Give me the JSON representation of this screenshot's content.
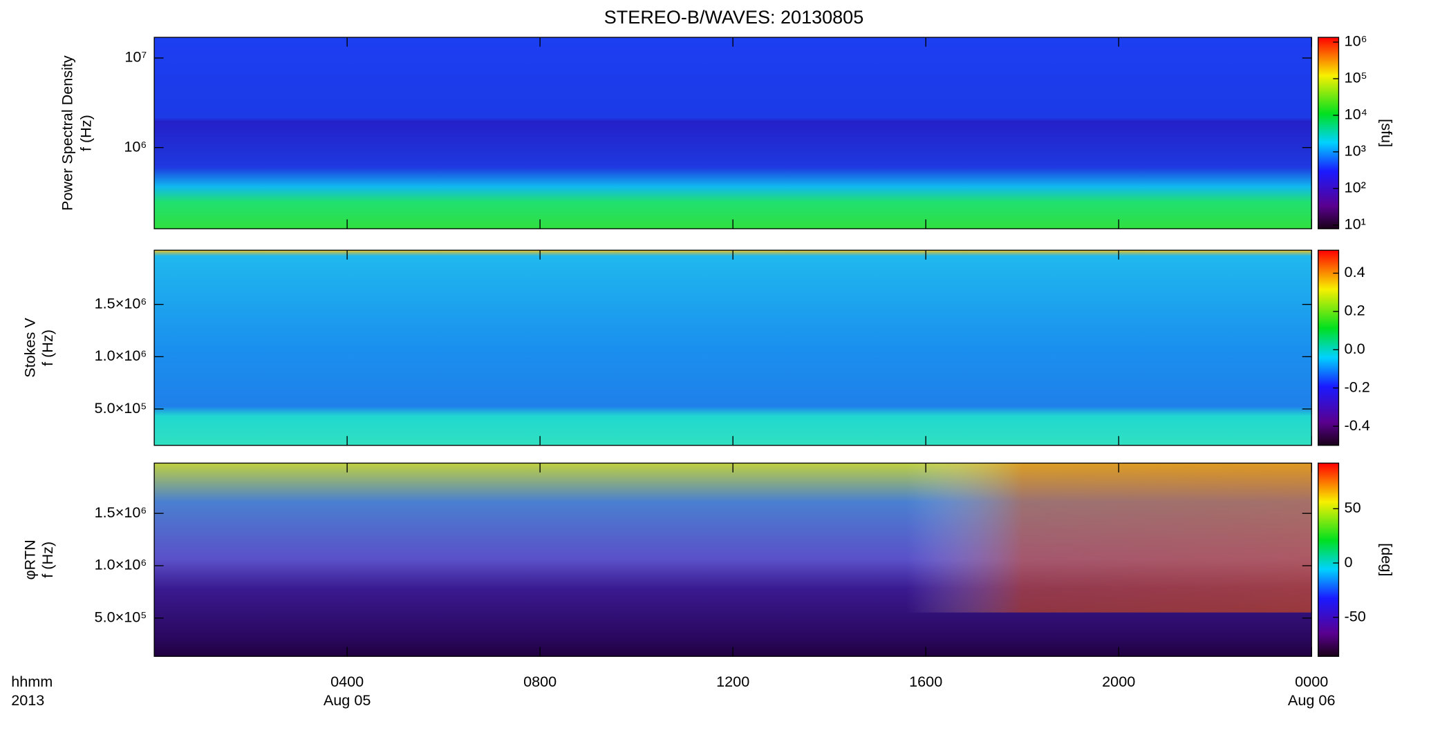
{
  "chart_data": [
    {
      "type": "heatmap",
      "title": "STEREO-B/WAVES: 20130805",
      "ylabel": [
        "Power Spectral Density",
        "f (Hz)"
      ],
      "ylog": true,
      "ylim": [
        124000,
        17000000
      ],
      "yticks": [
        {
          "value": 1000000,
          "label": "10⁶"
        },
        {
          "value": 10000000,
          "label": "10⁷"
        }
      ],
      "colorbar": {
        "label": "[sfu]",
        "log": true,
        "lim": [
          7.9,
          1350000
        ],
        "ticks": [
          {
            "value": 10,
            "label": "10¹"
          },
          {
            "value": 100,
            "label": "10²"
          },
          {
            "value": 1000,
            "label": "10³"
          },
          {
            "value": 10000,
            "label": "10⁴"
          },
          {
            "value": 100000,
            "label": "10⁵"
          },
          {
            "value": 1000000,
            "label": "10⁶"
          }
        ]
      }
    },
    {
      "type": "heatmap",
      "ylabel": [
        "Stokes V",
        "f (Hz)"
      ],
      "ylog": false,
      "ylim": [
        152000,
        2018000
      ],
      "yticks": [
        {
          "value": 500000,
          "label": "5.0×10⁵"
        },
        {
          "value": 1000000,
          "label": "1.0×10⁶"
        },
        {
          "value": 1500000,
          "label": "1.5×10⁶"
        }
      ],
      "colorbar": {
        "log": false,
        "lim": [
          -0.5,
          0.52
        ],
        "ticks": [
          -0.4,
          -0.2,
          {
            "value": 0,
            "label": "0.0"
          },
          0.2,
          0.4
        ]
      }
    },
    {
      "type": "heatmap",
      "ylabel": [
        "φRTN",
        "f (Hz)"
      ],
      "ylog": false,
      "ylim": [
        134000,
        1980000
      ],
      "yticks": [
        {
          "value": 500000,
          "label": "5.0×10⁵"
        },
        {
          "value": 1000000,
          "label": "1.0×10⁶"
        },
        {
          "value": 1500000,
          "label": "1.5×10⁶"
        }
      ],
      "colorbar": {
        "label": "[deg]",
        "log": false,
        "lim": [
          -86,
          92
        ],
        "ticks": [
          -50,
          0,
          50
        ]
      },
      "xlim": [
        0,
        24
      ],
      "xticks": [
        {
          "value": 4,
          "label": "0400"
        },
        {
          "value": 8,
          "label": "0800"
        },
        {
          "value": 12,
          "label": "1200"
        },
        {
          "value": 16,
          "label": "1600"
        },
        {
          "value": 20,
          "label": "2000"
        },
        {
          "value": 24,
          "label": "0000"
        }
      ],
      "xdates": [
        {
          "value": 4,
          "label": "Aug 05"
        },
        {
          "value": 24,
          "label": "Aug 06"
        }
      ],
      "xlabel": [
        "hhmm",
        "2013"
      ]
    }
  ]
}
